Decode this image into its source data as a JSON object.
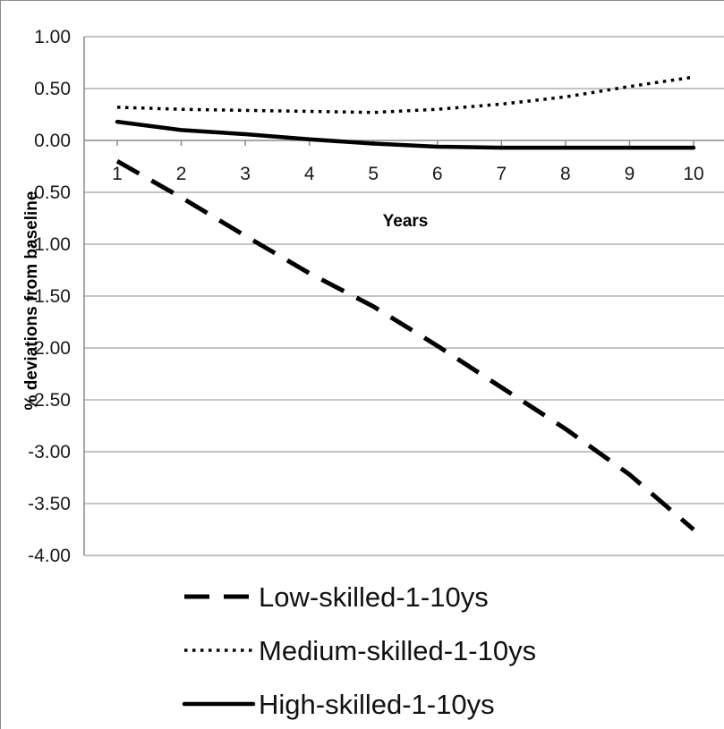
{
  "chart_data": {
    "type": "line",
    "title": "",
    "xlabel": "Years",
    "ylabel": "% deviations from baseline",
    "x": [
      1,
      2,
      3,
      4,
      5,
      6,
      7,
      8,
      9,
      10
    ],
    "x_tick_labels": [
      "1",
      "2",
      "3",
      "4",
      "5",
      "6",
      "7",
      "8",
      "9",
      "10"
    ],
    "y_tick_labels": [
      "1.00",
      "0.50",
      "0.00",
      "-0.50",
      "-1.00",
      "-1.50",
      "-2.00",
      "-2.50",
      "-3.00",
      "-3.50",
      "-4.00"
    ],
    "y_ticks": [
      1.0,
      0.5,
      0.0,
      -0.5,
      -1.0,
      -1.5,
      -2.0,
      -2.5,
      -3.0,
      -3.5,
      -4.0
    ],
    "ylim": [
      -4.0,
      1.0
    ],
    "grid": true,
    "legend_position": "bottom",
    "series": [
      {
        "name": "Low-skilled-1-10ys",
        "style": "dashed",
        "color": "#000000",
        "values": [
          -0.2,
          -0.55,
          -0.92,
          -1.28,
          -1.6,
          -1.98,
          -2.38,
          -2.78,
          -3.22,
          -3.75
        ]
      },
      {
        "name": "Medium-skilled-1-10ys",
        "style": "dotted",
        "color": "#000000",
        "values": [
          0.32,
          0.3,
          0.29,
          0.28,
          0.27,
          0.3,
          0.35,
          0.42,
          0.52,
          0.61
        ]
      },
      {
        "name": "High-skilled-1-10ys",
        "style": "solid",
        "color": "#000000",
        "values": [
          0.18,
          0.1,
          0.06,
          0.01,
          -0.03,
          -0.06,
          -0.07,
          -0.07,
          -0.07,
          -0.07
        ]
      }
    ]
  }
}
